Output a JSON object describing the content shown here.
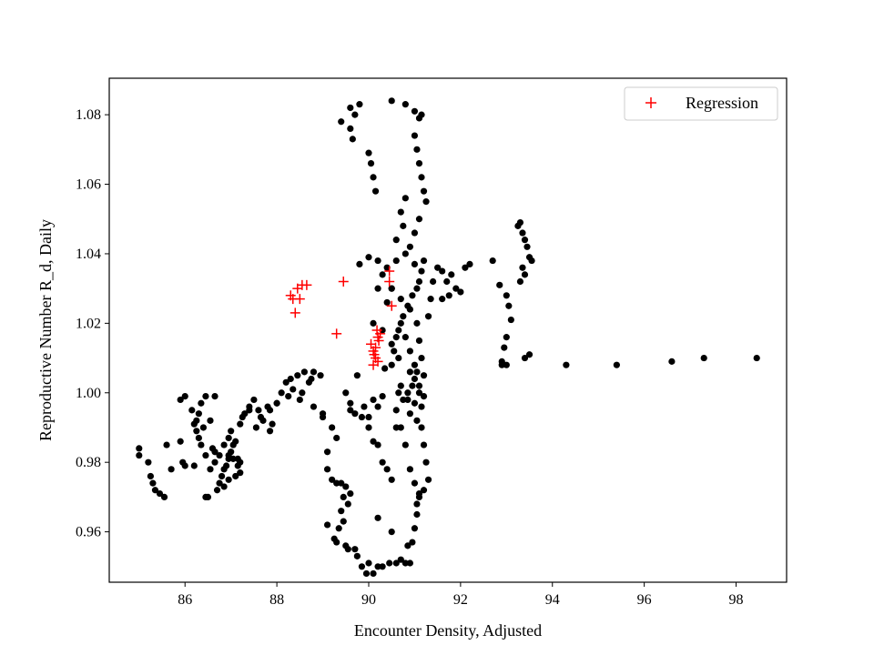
{
  "chart_data": {
    "type": "scatter",
    "xlabel": "Encounter Density, Adjusted",
    "ylabel": "Reproductive Number R_d, Daily",
    "xlim": [
      84.35,
      99.1
    ],
    "ylim": [
      0.9455,
      1.0905
    ],
    "xticks": [
      "86",
      "88",
      "90",
      "92",
      "94",
      "96",
      "98"
    ],
    "yticks": [
      "0.96",
      "0.98",
      "1.00",
      "1.02",
      "1.04",
      "1.06",
      "1.08"
    ],
    "grid": false,
    "legend": {
      "position": "top-right",
      "label": "Regression"
    },
    "colors": {
      "data": "#000000",
      "regression": "#ff0000"
    },
    "series": [
      {
        "marker": "dot",
        "points": [
          [
            85.0,
            0.984
          ],
          [
            85.0,
            0.982
          ],
          [
            85.2,
            0.98
          ],
          [
            85.25,
            0.976
          ],
          [
            85.3,
            0.974
          ],
          [
            85.35,
            0.972
          ],
          [
            85.45,
            0.971
          ],
          [
            85.55,
            0.97
          ],
          [
            85.6,
            0.985
          ],
          [
            85.7,
            0.978
          ],
          [
            85.9,
            0.998
          ],
          [
            85.9,
            0.986
          ],
          [
            85.95,
            0.98
          ],
          [
            86.0,
            0.979
          ],
          [
            86.0,
            0.999
          ],
          [
            86.15,
            0.995
          ],
          [
            86.2,
            0.991
          ],
          [
            86.25,
            0.989
          ],
          [
            86.3,
            0.987
          ],
          [
            86.35,
            0.985
          ],
          [
            86.4,
            0.99
          ],
          [
            86.45,
            0.982
          ],
          [
            86.2,
            0.979
          ],
          [
            86.45,
            0.97
          ],
          [
            86.5,
            0.97
          ],
          [
            86.55,
            0.978
          ],
          [
            86.6,
            0.984
          ],
          [
            86.65,
            0.983
          ],
          [
            86.7,
            0.972
          ],
          [
            86.75,
            0.974
          ],
          [
            86.8,
            0.976
          ],
          [
            86.85,
            0.978
          ],
          [
            86.9,
            0.979
          ],
          [
            86.95,
            0.981
          ],
          [
            87.0,
            0.983
          ],
          [
            87.05,
            0.985
          ],
          [
            87.1,
            0.986
          ],
          [
            87.15,
            0.981
          ],
          [
            87.2,
            0.98
          ],
          [
            87.25,
            0.993
          ],
          [
            87.3,
            0.994
          ],
          [
            87.4,
            0.996
          ],
          [
            87.5,
            0.998
          ],
          [
            87.6,
            0.995
          ],
          [
            87.65,
            0.993
          ],
          [
            87.8,
            0.996
          ],
          [
            87.85,
            0.989
          ],
          [
            87.9,
            0.991
          ],
          [
            88.0,
            0.997
          ],
          [
            88.1,
            1.0
          ],
          [
            88.2,
            1.003
          ],
          [
            88.3,
            1.004
          ],
          [
            88.45,
            1.005
          ],
          [
            88.6,
            1.006
          ],
          [
            88.8,
            0.996
          ],
          [
            88.8,
            1.006
          ],
          [
            88.5,
            0.998
          ],
          [
            89.0,
            0.993
          ],
          [
            89.1,
            0.983
          ],
          [
            89.1,
            0.978
          ],
          [
            89.2,
            0.975
          ],
          [
            89.3,
            0.974
          ],
          [
            89.4,
            0.974
          ],
          [
            89.5,
            0.973
          ],
          [
            89.45,
            0.97
          ],
          [
            89.4,
            0.966
          ],
          [
            89.35,
            0.961
          ],
          [
            89.3,
            0.957
          ],
          [
            89.5,
            0.956
          ],
          [
            89.7,
            0.955
          ],
          [
            89.85,
            0.95
          ],
          [
            89.95,
            0.948
          ],
          [
            90.1,
            0.948
          ],
          [
            90.3,
            0.95
          ],
          [
            90.6,
            0.951
          ],
          [
            90.8,
            0.951
          ],
          [
            90.9,
            0.951
          ],
          [
            90.95,
            0.957
          ],
          [
            90.5,
            0.96
          ],
          [
            90.2,
            0.964
          ],
          [
            89.5,
            1.0
          ],
          [
            89.6,
            0.997
          ],
          [
            89.75,
            1.005
          ],
          [
            89.9,
            0.996
          ],
          [
            90.0,
            0.99
          ],
          [
            90.1,
            0.986
          ],
          [
            90.2,
            0.985
          ],
          [
            90.3,
            0.98
          ],
          [
            90.4,
            0.978
          ],
          [
            90.5,
            0.975
          ],
          [
            90.6,
            0.99
          ],
          [
            90.65,
            1.0
          ],
          [
            90.7,
            1.002
          ],
          [
            90.75,
            0.998
          ],
          [
            90.85,
            1.0
          ],
          [
            90.95,
            1.002
          ],
          [
            91.0,
            1.004
          ],
          [
            91.05,
            1.006
          ],
          [
            91.1,
            1.0
          ],
          [
            91.15,
            0.99
          ],
          [
            91.2,
            0.985
          ],
          [
            91.25,
            0.98
          ],
          [
            91.3,
            0.975
          ],
          [
            91.2,
            0.972
          ],
          [
            91.1,
            0.97
          ],
          [
            91.0,
            0.974
          ],
          [
            90.9,
            0.978
          ],
          [
            90.8,
            0.985
          ],
          [
            90.7,
            0.99
          ],
          [
            90.6,
            0.995
          ],
          [
            90.5,
            1.008
          ],
          [
            90.55,
            1.012
          ],
          [
            90.6,
            1.016
          ],
          [
            90.65,
            1.018
          ],
          [
            90.7,
            1.02
          ],
          [
            90.75,
            1.022
          ],
          [
            90.85,
            1.025
          ],
          [
            90.95,
            1.028
          ],
          [
            91.05,
            1.03
          ],
          [
            91.1,
            1.032
          ],
          [
            91.15,
            1.035
          ],
          [
            91.2,
            1.038
          ],
          [
            91.0,
            1.037
          ],
          [
            90.8,
            1.04
          ],
          [
            90.6,
            1.038
          ],
          [
            90.4,
            1.036
          ],
          [
            90.2,
            1.038
          ],
          [
            90.0,
            1.039
          ],
          [
            89.8,
            1.037
          ],
          [
            90.3,
            1.034
          ],
          [
            90.5,
            1.03
          ],
          [
            90.7,
            1.027
          ],
          [
            90.9,
            1.024
          ],
          [
            91.05,
            1.02
          ],
          [
            91.1,
            1.015
          ],
          [
            91.15,
            1.01
          ],
          [
            91.2,
            1.005
          ],
          [
            91.3,
            1.022
          ],
          [
            91.35,
            1.027
          ],
          [
            91.4,
            1.032
          ],
          [
            91.5,
            1.036
          ],
          [
            91.6,
            1.035
          ],
          [
            91.7,
            1.032
          ],
          [
            91.8,
            1.034
          ],
          [
            91.9,
            1.03
          ],
          [
            92.0,
            1.029
          ],
          [
            91.6,
            1.027
          ],
          [
            91.75,
            1.028
          ],
          [
            92.1,
            1.036
          ],
          [
            92.2,
            1.037
          ],
          [
            92.7,
            1.038
          ],
          [
            92.85,
            1.031
          ],
          [
            93.0,
            1.028
          ],
          [
            93.05,
            1.025
          ],
          [
            93.1,
            1.021
          ],
          [
            93.0,
            1.016
          ],
          [
            92.95,
            1.013
          ],
          [
            92.9,
            1.009
          ],
          [
            93.0,
            1.008
          ],
          [
            93.25,
            1.048
          ],
          [
            93.3,
            1.049
          ],
          [
            93.35,
            1.046
          ],
          [
            93.4,
            1.044
          ],
          [
            93.45,
            1.042
          ],
          [
            93.5,
            1.039
          ],
          [
            93.55,
            1.038
          ],
          [
            93.35,
            1.036
          ],
          [
            93.4,
            1.034
          ],
          [
            93.3,
            1.032
          ],
          [
            93.4,
            1.01
          ],
          [
            93.5,
            1.011
          ],
          [
            92.9,
            1.008
          ],
          [
            94.3,
            1.008
          ],
          [
            95.4,
            1.008
          ],
          [
            96.6,
            1.009
          ],
          [
            97.3,
            1.01
          ],
          [
            98.45,
            1.01
          ],
          [
            89.4,
            1.078
          ],
          [
            89.6,
            1.082
          ],
          [
            89.7,
            1.08
          ],
          [
            89.8,
            1.083
          ],
          [
            89.6,
            1.076
          ],
          [
            89.65,
            1.073
          ],
          [
            90.0,
            1.069
          ],
          [
            90.05,
            1.066
          ],
          [
            90.1,
            1.062
          ],
          [
            90.15,
            1.058
          ],
          [
            90.5,
            1.084
          ],
          [
            90.8,
            1.083
          ],
          [
            91.0,
            1.081
          ],
          [
            91.1,
            1.079
          ],
          [
            91.15,
            1.08
          ],
          [
            91.0,
            1.074
          ],
          [
            91.05,
            1.07
          ],
          [
            91.1,
            1.066
          ],
          [
            91.15,
            1.062
          ],
          [
            91.2,
            1.058
          ],
          [
            91.25,
            1.055
          ],
          [
            91.1,
            1.05
          ],
          [
            91.0,
            1.046
          ],
          [
            90.9,
            1.042
          ],
          [
            90.75,
            1.048
          ],
          [
            90.7,
            1.052
          ],
          [
            90.8,
            1.056
          ],
          [
            90.6,
            1.044
          ],
          [
            90.5,
            1.03
          ],
          [
            90.4,
            1.026
          ],
          [
            91.0,
            1.008
          ],
          [
            90.9,
            1.012
          ],
          [
            90.8,
            1.016
          ],
          [
            90.2,
            1.03
          ],
          [
            90.1,
            1.02
          ],
          [
            90.3,
            1.018
          ],
          [
            90.5,
            1.014
          ],
          [
            90.65,
            1.01
          ],
          [
            90.35,
            1.007
          ],
          [
            90.9,
            1.006
          ],
          [
            91.1,
            1.002
          ],
          [
            91.2,
            0.999
          ],
          [
            91.15,
            0.996
          ],
          [
            91.0,
            0.997
          ],
          [
            90.85,
            0.998
          ],
          [
            90.9,
            0.994
          ],
          [
            91.05,
            0.992
          ],
          [
            89.2,
            0.99
          ],
          [
            89.3,
            0.987
          ],
          [
            89.0,
            0.994
          ],
          [
            89.6,
            0.995
          ],
          [
            89.7,
            0.994
          ],
          [
            89.85,
            0.993
          ],
          [
            90.0,
            0.993
          ],
          [
            90.2,
            0.996
          ],
          [
            90.1,
            0.998
          ],
          [
            90.3,
            0.999
          ],
          [
            88.95,
            1.005
          ],
          [
            88.75,
            1.004
          ],
          [
            88.7,
            1.003
          ],
          [
            88.55,
            1.0
          ],
          [
            88.35,
            1.001
          ],
          [
            88.25,
            0.999
          ],
          [
            88.0,
            0.997
          ],
          [
            87.85,
            0.995
          ],
          [
            87.7,
            0.992
          ],
          [
            87.55,
            0.99
          ],
          [
            87.4,
            0.995
          ],
          [
            87.2,
            0.991
          ],
          [
            87.0,
            0.989
          ],
          [
            86.95,
            0.987
          ],
          [
            86.85,
            0.985
          ],
          [
            86.75,
            0.982
          ],
          [
            86.65,
            0.98
          ],
          [
            86.95,
            0.982
          ],
          [
            87.05,
            0.981
          ],
          [
            87.15,
            0.979
          ],
          [
            87.2,
            0.977
          ],
          [
            87.1,
            0.976
          ],
          [
            86.95,
            0.975
          ],
          [
            86.85,
            0.973
          ],
          [
            86.55,
            0.992
          ],
          [
            86.65,
            0.999
          ],
          [
            86.45,
            0.999
          ],
          [
            86.35,
            0.997
          ],
          [
            86.3,
            0.994
          ],
          [
            86.25,
            0.992
          ],
          [
            89.6,
            0.971
          ],
          [
            89.55,
            0.968
          ],
          [
            89.45,
            0.963
          ],
          [
            89.1,
            0.962
          ],
          [
            89.25,
            0.958
          ],
          [
            89.55,
            0.955
          ],
          [
            89.75,
            0.953
          ],
          [
            90.0,
            0.951
          ],
          [
            90.2,
            0.95
          ],
          [
            90.45,
            0.951
          ],
          [
            90.7,
            0.952
          ],
          [
            90.85,
            0.956
          ],
          [
            91.0,
            0.961
          ],
          [
            91.05,
            0.965
          ],
          [
            91.05,
            0.968
          ],
          [
            91.1,
            0.971
          ]
        ]
      },
      {
        "name": "Regression",
        "marker": "plus",
        "points": [
          [
            88.3,
            1.028
          ],
          [
            88.35,
            1.027
          ],
          [
            88.4,
            1.023
          ],
          [
            88.45,
            1.03
          ],
          [
            88.5,
            1.027
          ],
          [
            88.55,
            1.031
          ],
          [
            88.65,
            1.031
          ],
          [
            89.3,
            1.017
          ],
          [
            89.45,
            1.032
          ],
          [
            90.05,
            1.014
          ],
          [
            90.1,
            1.012
          ],
          [
            90.1,
            1.008
          ],
          [
            90.12,
            1.011
          ],
          [
            90.15,
            1.01
          ],
          [
            90.15,
            1.013
          ],
          [
            90.18,
            1.018
          ],
          [
            90.2,
            1.009
          ],
          [
            90.2,
            1.016
          ],
          [
            90.22,
            1.015
          ],
          [
            90.25,
            1.017
          ],
          [
            90.45,
            1.035
          ],
          [
            90.45,
            1.032
          ],
          [
            90.5,
            1.025
          ]
        ]
      }
    ]
  }
}
